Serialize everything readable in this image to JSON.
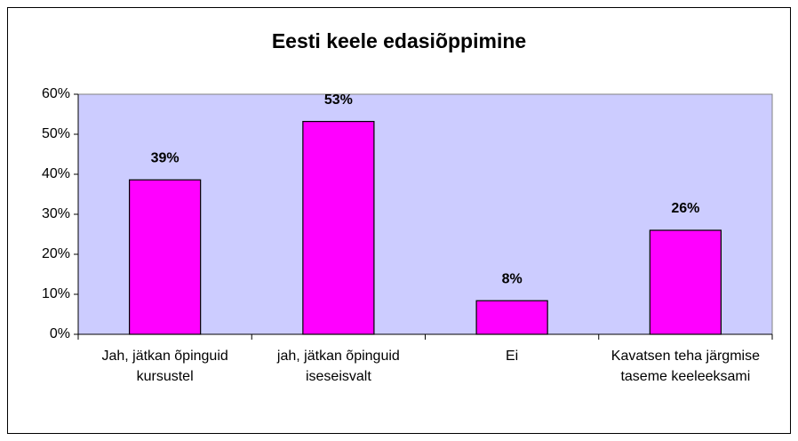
{
  "chart_data": {
    "type": "bar",
    "title": "Eesti keele edasiõppimine",
    "categories": [
      "Jah, jätkan õpinguid kursustel",
      "jah, jätkan õpinguid iseseisvalt",
      "Ei",
      "Kavatsen teha järgmise taseme keeleeksami"
    ],
    "values": [
      38.6,
      53.2,
      8.4,
      26
    ],
    "value_labels": [
      "39%",
      "53%",
      "8%",
      "26%"
    ],
    "color": "#ff00ff",
    "ylim": [
      0,
      60
    ],
    "yticks": [
      {
        "value": 0,
        "label": "0%"
      },
      {
        "value": 10,
        "label": "10%"
      },
      {
        "value": 20,
        "label": "20%"
      },
      {
        "value": 30,
        "label": "30%"
      },
      {
        "value": 40,
        "label": "40%"
      },
      {
        "value": 50,
        "label": "50%"
      },
      {
        "value": 60,
        "label": "60%"
      }
    ],
    "grid": false
  }
}
